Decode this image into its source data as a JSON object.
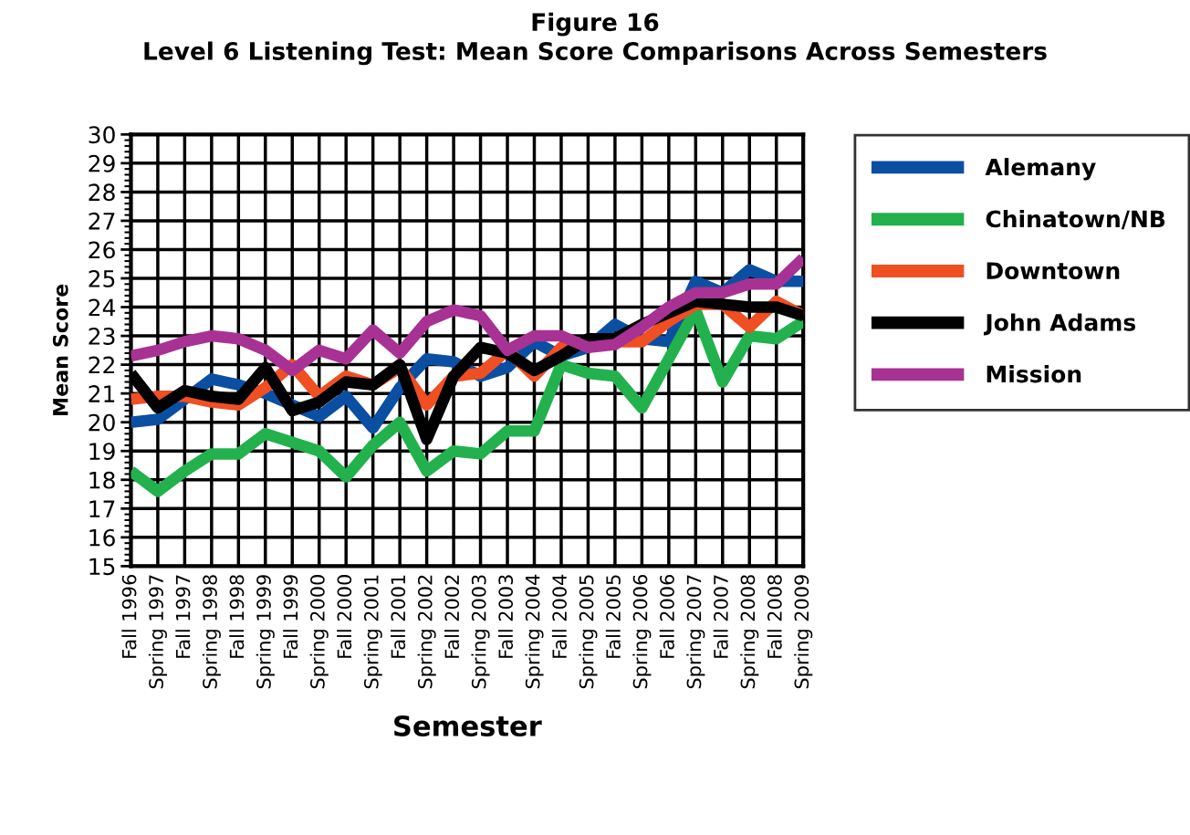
{
  "chart_data": {
    "type": "line",
    "title": "Figure 16\nLevel 6 Listening Test: Mean Score Comparisons Across Semesters",
    "xlabel": "Semester",
    "ylabel": "Mean Score",
    "categories": [
      "Fall 1996",
      "Spring 1997",
      "Fall 1997",
      "Spring 1998",
      "Fall 1998",
      "Spring 1999",
      "Fall 1999",
      "Spring 2000",
      "Fall 2000",
      "Spring 2001",
      "Fall 2001",
      "Spring 2002",
      "Fall 2002",
      "Spring 2003",
      "Fall 2003",
      "Spring 2004",
      "Fall 2004",
      "Spring 2005",
      "Fall 2005",
      "Spring 2006",
      "Fall 2006",
      "Spring 2007",
      "Fall 2007",
      "Spring 2008",
      "Fall 2008",
      "Spring 2009"
    ],
    "series": [
      {
        "name": "Alemany",
        "color": "#0b4fa3",
        "values": [
          20.0,
          20.1,
          20.8,
          21.5,
          21.3,
          21.0,
          20.6,
          20.2,
          20.9,
          19.8,
          21.2,
          22.2,
          22.1,
          21.6,
          21.9,
          22.8,
          22.3,
          22.6,
          23.4,
          22.9,
          22.8,
          24.9,
          24.5,
          25.3,
          24.9,
          24.9
        ]
      },
      {
        "name": "Chinatown/NB",
        "color": "#23b14d",
        "values": [
          18.3,
          17.6,
          18.3,
          18.9,
          18.9,
          19.6,
          19.3,
          19.0,
          18.1,
          19.2,
          20.0,
          18.3,
          19.0,
          18.9,
          19.7,
          19.7,
          22.0,
          21.7,
          21.6,
          20.5,
          22.2,
          23.9,
          21.4,
          23.0,
          22.9,
          23.5
        ]
      },
      {
        "name": "Downtown",
        "color": "#f04e23",
        "values": [
          20.8,
          20.9,
          20.9,
          20.7,
          20.6,
          21.2,
          22.0,
          20.9,
          21.6,
          21.3,
          21.9,
          20.6,
          21.6,
          21.7,
          22.5,
          21.6,
          22.6,
          22.8,
          22.8,
          22.8,
          23.5,
          24.1,
          24.1,
          23.3,
          24.2,
          23.7
        ]
      },
      {
        "name": "John Adams",
        "color": "#000000",
        "values": [
          21.7,
          20.5,
          21.1,
          20.9,
          20.8,
          21.9,
          20.4,
          20.7,
          21.4,
          21.3,
          22.0,
          19.4,
          21.6,
          22.6,
          22.4,
          21.8,
          22.3,
          22.9,
          22.9,
          23.4,
          23.8,
          24.2,
          24.1,
          24.0,
          24.0,
          23.7
        ]
      },
      {
        "name": "Mission",
        "color": "#a83293",
        "values": [
          22.3,
          22.5,
          22.8,
          23.0,
          22.9,
          22.5,
          21.8,
          22.5,
          22.2,
          23.2,
          22.4,
          23.5,
          23.9,
          23.7,
          22.5,
          23.0,
          23.0,
          22.6,
          22.7,
          23.3,
          24.0,
          24.5,
          24.5,
          24.8,
          24.8,
          25.7
        ]
      }
    ],
    "ylim": [
      15,
      30
    ],
    "yticks": [
      15,
      16,
      17,
      18,
      19,
      20,
      21,
      22,
      23,
      24,
      25,
      26,
      27,
      28,
      29,
      30
    ],
    "grid": true,
    "legend": "right",
    "marker": "none",
    "line_style": "solid"
  }
}
